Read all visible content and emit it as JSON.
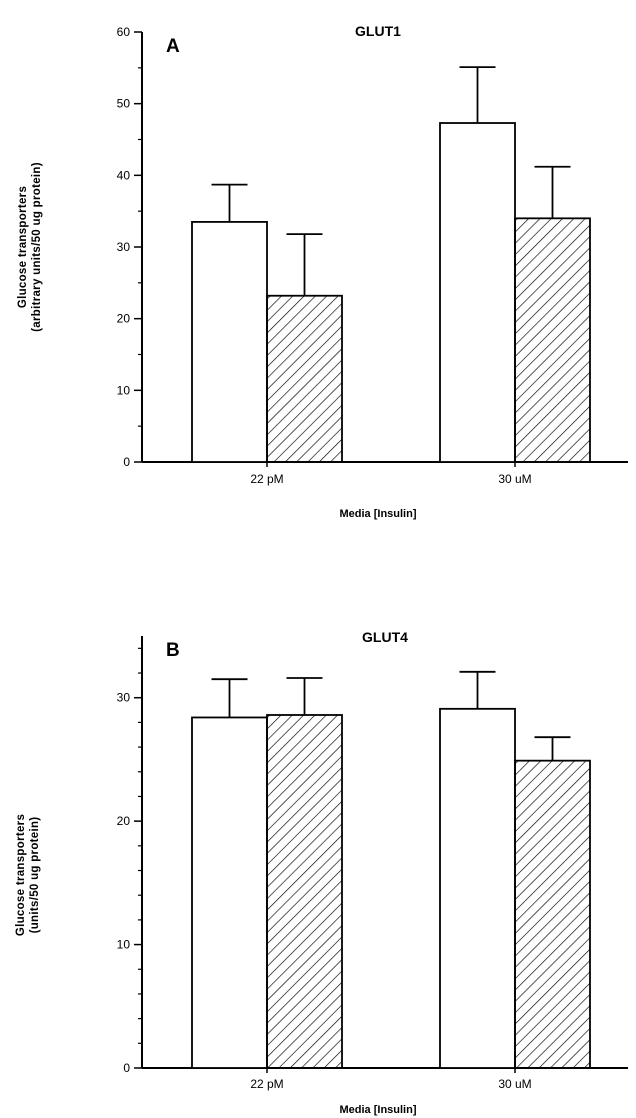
{
  "chart_data": [
    {
      "type": "bar",
      "panel": "A",
      "title": "GLUT1",
      "xlabel": "Media [Insulin]",
      "ylabel_lines": [
        "Glucose  transporters",
        "(arbitrary  units/50  ug  protein)"
      ],
      "categories": [
        "22 pM",
        "30 uM"
      ],
      "ylim": [
        0,
        60
      ],
      "yticks": [
        "0",
        "10",
        "20",
        "30",
        "40",
        "50",
        "60"
      ],
      "series": [
        {
          "fill": "open",
          "values": [
            33.5,
            47.3
          ],
          "errors": [
            5.2,
            7.8
          ]
        },
        {
          "fill": "hatched",
          "values": [
            23.2,
            34.0
          ],
          "errors": [
            8.6,
            7.2
          ]
        }
      ]
    },
    {
      "type": "bar",
      "panel": "B",
      "title": "GLUT4",
      "xlabel": "Media [Insulin]",
      "ylabel_lines": [
        "Glucose  transporters",
        "(units/50  ug  protein)"
      ],
      "categories": [
        "22 pM",
        "30 uM"
      ],
      "ylim": [
        0,
        35
      ],
      "yticks": [
        "0",
        "10",
        "20",
        "30"
      ],
      "series": [
        {
          "fill": "open",
          "values": [
            28.4,
            29.1
          ],
          "errors": [
            3.1,
            3.0
          ]
        },
        {
          "fill": "hatched",
          "values": [
            28.6,
            24.9
          ],
          "errors": [
            3.0,
            1.9
          ]
        }
      ]
    }
  ]
}
